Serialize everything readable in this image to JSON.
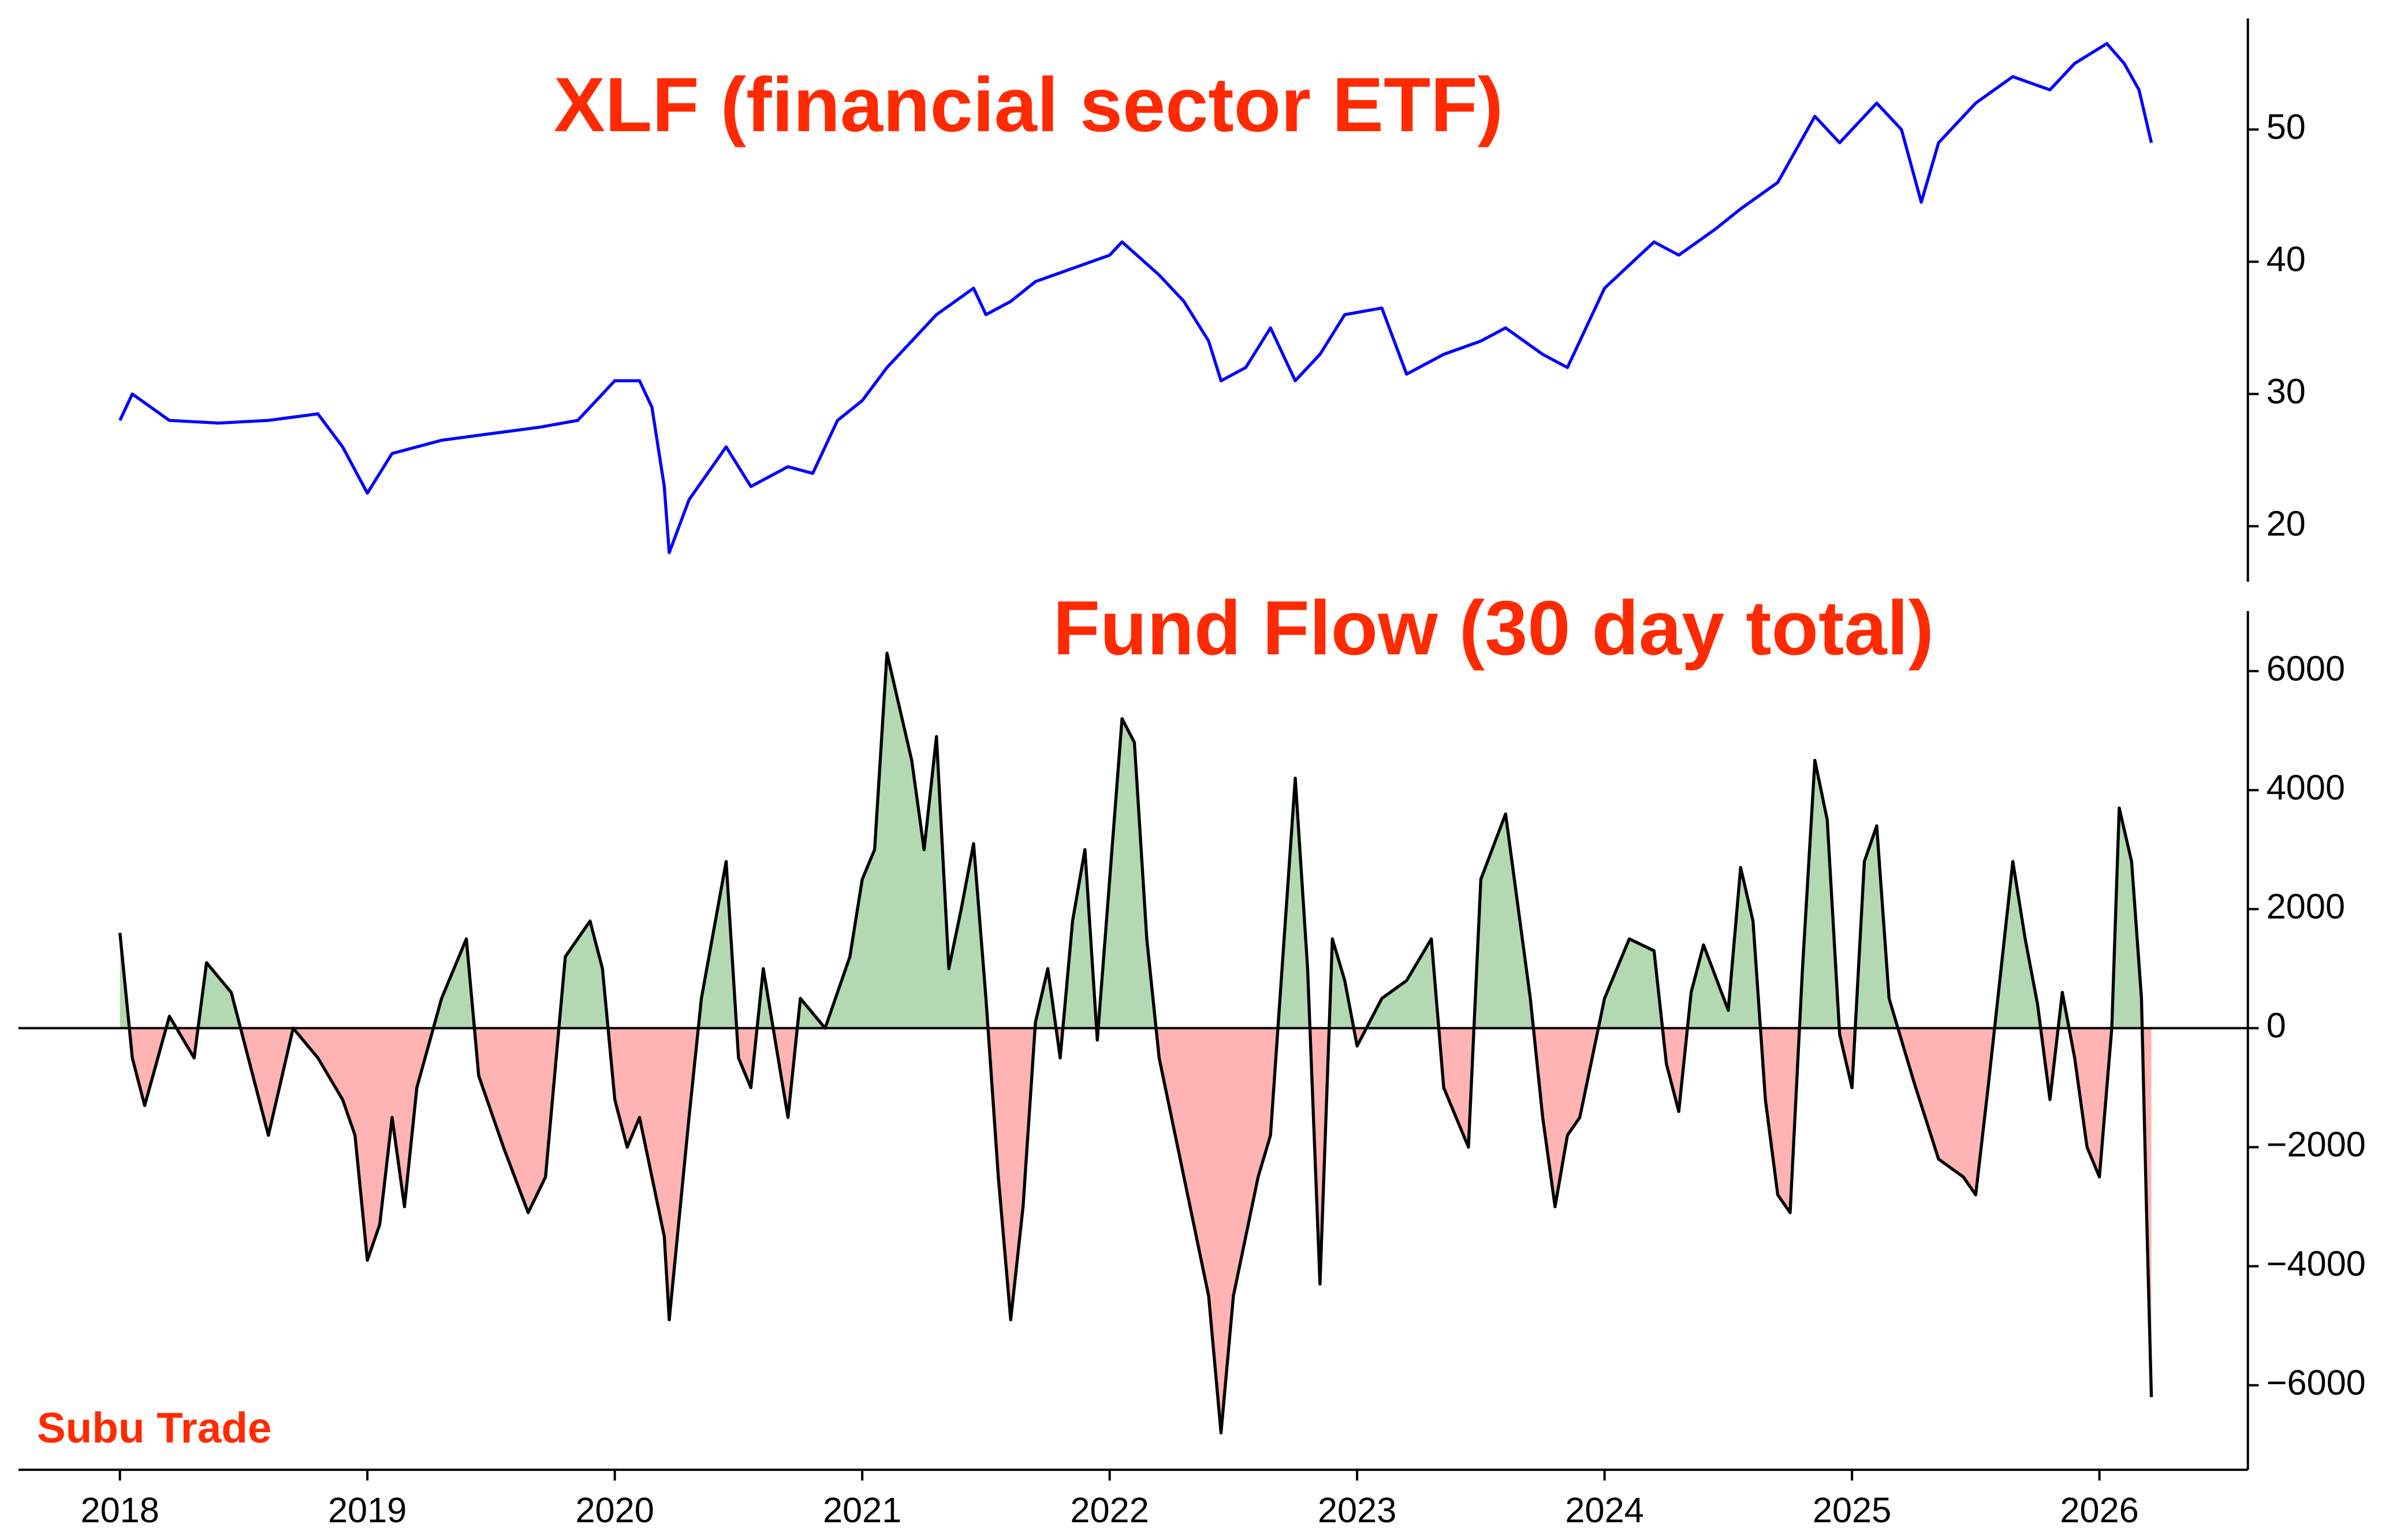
{
  "chart_data": [
    {
      "type": "line",
      "title": "XLF (financial sector ETF)",
      "color": "#0000ff",
      "x": [
        2018.0,
        2018.05,
        2018.2,
        2018.4,
        2018.6,
        2018.8,
        2018.9,
        2019.0,
        2019.1,
        2019.3,
        2019.5,
        2019.7,
        2019.85,
        2020.0,
        2020.1,
        2020.15,
        2020.2,
        2020.22,
        2020.3,
        2020.45,
        2020.55,
        2020.7,
        2020.8,
        2020.9,
        2021.0,
        2021.1,
        2021.3,
        2021.45,
        2021.5,
        2021.6,
        2021.7,
        2021.85,
        2022.0,
        2022.05,
        2022.2,
        2022.3,
        2022.4,
        2022.45,
        2022.55,
        2022.65,
        2022.75,
        2022.85,
        2022.95,
        2023.1,
        2023.2,
        2023.35,
        2023.5,
        2023.6,
        2023.75,
        2023.85,
        2024.0,
        2024.2,
        2024.3,
        2024.45,
        2024.55,
        2024.7,
        2024.85,
        2024.95,
        2025.0,
        2025.1,
        2025.2,
        2025.28,
        2025.35,
        2025.5,
        2025.65,
        2025.8,
        2025.9,
        2026.03,
        2026.1,
        2026.16,
        2026.21
      ],
      "values": [
        28,
        30,
        28,
        27.8,
        28,
        28.5,
        26,
        22.5,
        25.5,
        26.5,
        27,
        27.5,
        28,
        31,
        31,
        29,
        23,
        18,
        22,
        26,
        23,
        24.5,
        24,
        28,
        29.5,
        32,
        36,
        38,
        36,
        37,
        38.5,
        39.5,
        40.5,
        41.5,
        39,
        37,
        34,
        31,
        32,
        35,
        31,
        33,
        36,
        36.5,
        31.5,
        33,
        34,
        35,
        33,
        32,
        38,
        41.5,
        40.5,
        42.5,
        44,
        46,
        51,
        49,
        50,
        52,
        50,
        44.5,
        49,
        52,
        54,
        53,
        55,
        56.5,
        55,
        53,
        49
      ],
      "xlim": [
        2017.59,
        2026.6
      ],
      "ylim": [
        15.8,
        58.4
      ],
      "yticks": [
        20,
        30,
        40,
        50
      ]
    },
    {
      "type": "area",
      "title": "Fund Flow (30 day total)",
      "watermark": "Subu Trade",
      "color": "#000000",
      "positive_color": "#b3d9b3",
      "negative_color": "#ffb3b3",
      "x": [
        2018.0,
        2018.05,
        2018.1,
        2018.2,
        2018.3,
        2018.35,
        2018.45,
        2018.55,
        2018.6,
        2018.7,
        2018.8,
        2018.9,
        2018.95,
        2019.0,
        2019.05,
        2019.1,
        2019.15,
        2019.2,
        2019.3,
        2019.4,
        2019.45,
        2019.55,
        2019.65,
        2019.72,
        2019.8,
        2019.9,
        2019.95,
        2020.0,
        2020.05,
        2020.1,
        2020.2,
        2020.22,
        2020.3,
        2020.35,
        2020.45,
        2020.5,
        2020.55,
        2020.6,
        2020.7,
        2020.75,
        2020.85,
        2020.95,
        2021.0,
        2021.05,
        2021.1,
        2021.2,
        2021.25,
        2021.3,
        2021.35,
        2021.4,
        2021.45,
        2021.5,
        2021.55,
        2021.6,
        2021.65,
        2021.7,
        2021.75,
        2021.8,
        2021.85,
        2021.9,
        2021.95,
        2022.05,
        2022.1,
        2022.15,
        2022.2,
        2022.3,
        2022.4,
        2022.45,
        2022.5,
        2022.6,
        2022.65,
        2022.75,
        2022.8,
        2022.85,
        2022.9,
        2022.95,
        2023.0,
        2023.1,
        2023.2,
        2023.3,
        2023.35,
        2023.45,
        2023.5,
        2023.6,
        2023.7,
        2023.75,
        2023.8,
        2023.85,
        2023.9,
        2024.0,
        2024.1,
        2024.2,
        2024.25,
        2024.3,
        2024.35,
        2024.4,
        2024.5,
        2024.55,
        2024.6,
        2024.65,
        2024.7,
        2024.75,
        2024.8,
        2024.85,
        2024.9,
        2024.95,
        2025.0,
        2025.05,
        2025.1,
        2025.15,
        2025.25,
        2025.35,
        2025.45,
        2025.5,
        2025.55,
        2025.6,
        2025.65,
        2025.7,
        2025.75,
        2025.8,
        2025.85,
        2025.9,
        2025.95,
        2026.0,
        2026.05,
        2026.08,
        2026.13,
        2026.17,
        2026.19,
        2026.21
      ],
      "values": [
        1600,
        -500,
        -1300,
        200,
        -500,
        1100,
        600,
        -1000,
        -1800,
        0,
        -500,
        -1200,
        -1800,
        -3900,
        -3300,
        -1500,
        -3000,
        -1000,
        500,
        1500,
        -800,
        -2000,
        -3100,
        -2500,
        1200,
        1800,
        1000,
        -1200,
        -2000,
        -1500,
        -3500,
        -4900,
        -1500,
        500,
        2800,
        -500,
        -1000,
        1000,
        -1500,
        500,
        0,
        1200,
        2500,
        3000,
        6300,
        4500,
        3000,
        4900,
        1000,
        2000,
        3100,
        500,
        -2500,
        -4900,
        -3000,
        100,
        1000,
        -500,
        1800,
        3000,
        -200,
        5200,
        4800,
        1500,
        -500,
        -2500,
        -4500,
        -6800,
        -4500,
        -2500,
        -1800,
        4200,
        1000,
        -4300,
        1500,
        800,
        -300,
        500,
        800,
        1500,
        -1000,
        -2000,
        2500,
        3600,
        500,
        -1500,
        -3000,
        -1800,
        -1500,
        500,
        1500,
        1300,
        -600,
        -1400,
        600,
        1400,
        300,
        2700,
        1800,
        -1200,
        -2800,
        -3100,
        1000,
        4500,
        3500,
        -100,
        -1000,
        2800,
        3400,
        500,
        -900,
        -2200,
        -2500,
        -2800,
        -1000,
        900,
        2800,
        1500,
        400,
        -1200,
        600,
        -500,
        -2000,
        -2500,
        0,
        3700,
        2800,
        500,
        -3000,
        -6200
      ],
      "xlim": [
        2017.59,
        2026.6
      ],
      "ylim": [
        -7420,
        7010
      ],
      "yticks": [
        {
          "value": -6000,
          "label": "−6000"
        },
        {
          "value": -4000,
          "label": "−4000"
        },
        {
          "value": -2000,
          "label": "−2000"
        },
        0,
        2000,
        4000,
        6000
      ],
      "xticks": [
        2018,
        2019,
        2020,
        2021,
        2022,
        2023,
        2024,
        2025,
        2026
      ]
    }
  ]
}
